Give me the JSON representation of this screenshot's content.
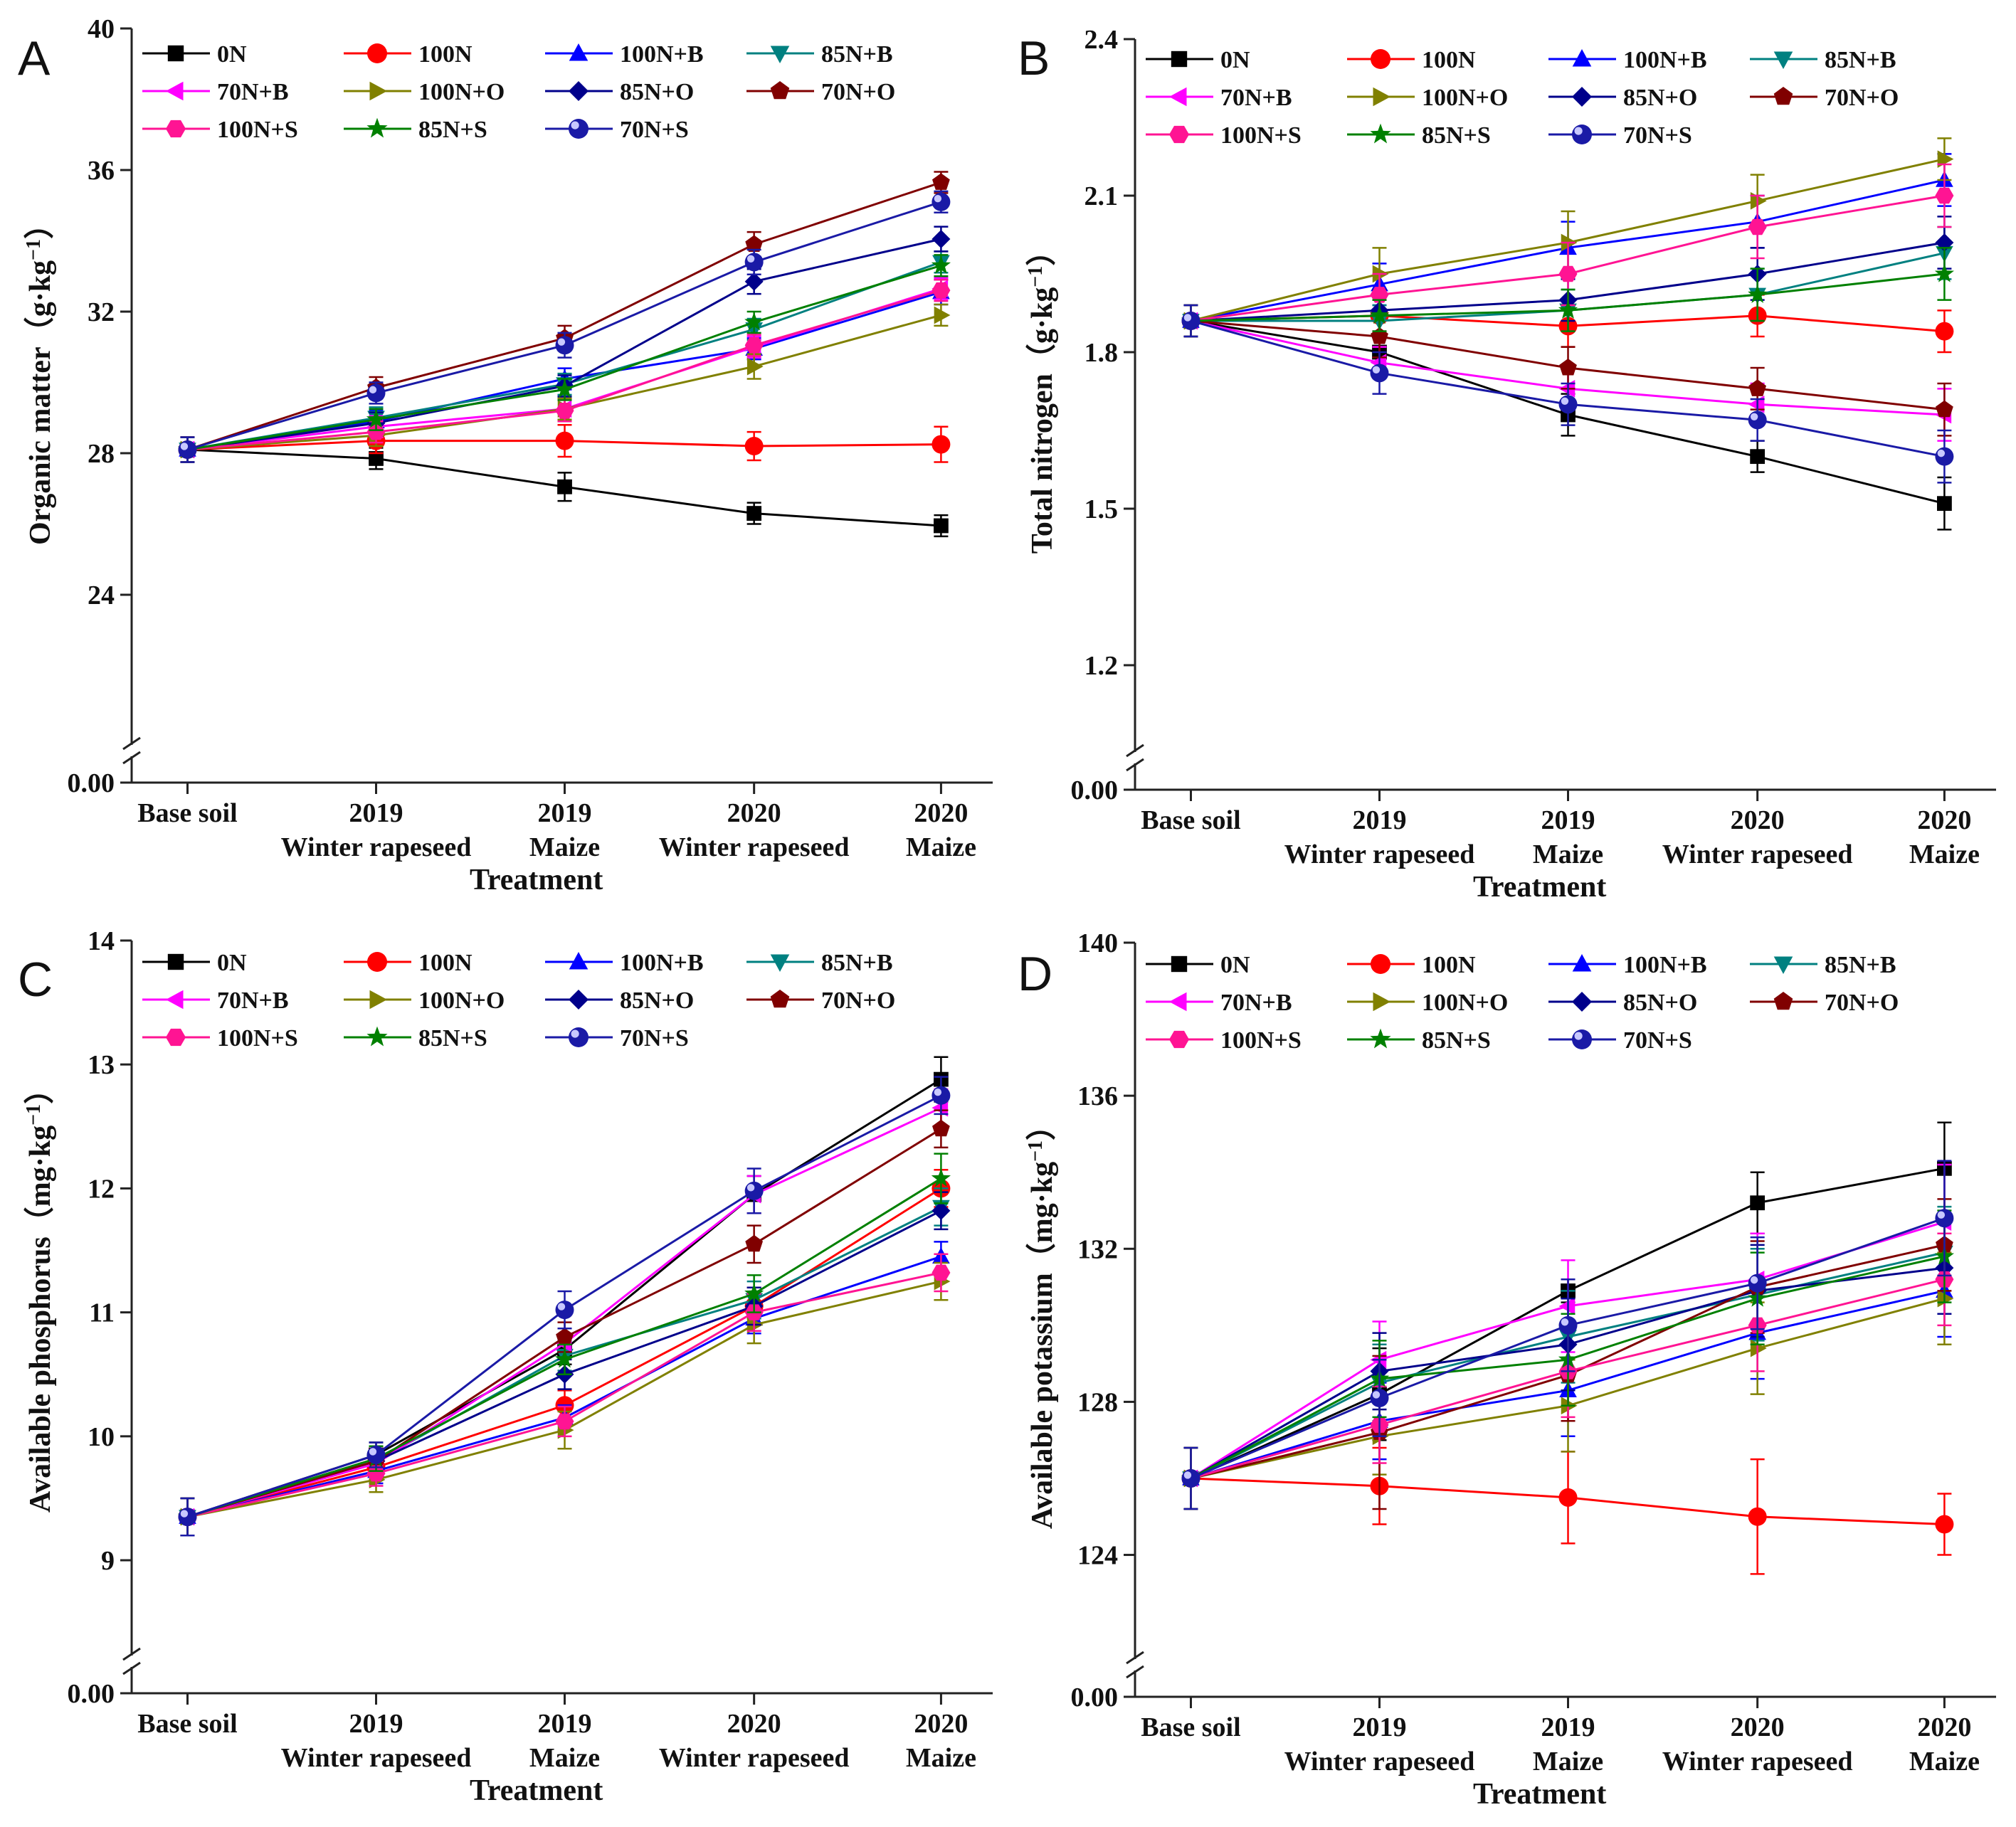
{
  "figure": {
    "x_title": "Treatment"
  },
  "series_styles": [
    {
      "name": "0N",
      "color": "#000000",
      "marker": "square"
    },
    {
      "name": "100N",
      "color": "#ff0000",
      "marker": "circle"
    },
    {
      "name": "100N+B",
      "color": "#0000ff",
      "marker": "triangle-up"
    },
    {
      "name": "85N+B",
      "color": "#008080",
      "marker": "triangle-down"
    },
    {
      "name": "70N+B",
      "color": "#ff00ff",
      "marker": "triangle-left"
    },
    {
      "name": "100N+O",
      "color": "#808000",
      "marker": "triangle-right"
    },
    {
      "name": "85N+O",
      "color": "#00008b",
      "marker": "diamond"
    },
    {
      "name": "70N+O",
      "color": "#800000",
      "marker": "pentagon"
    },
    {
      "name": "100N+S",
      "color": "#ff1493",
      "marker": "hexagon"
    },
    {
      "name": "85N+S",
      "color": "#008000",
      "marker": "star"
    },
    {
      "name": "70N+S",
      "color": "#1a1aa6",
      "marker": "sphere"
    }
  ],
  "chart_data": [
    {
      "panel": "A",
      "type": "line",
      "ylabel_main": "Organic matter",
      "ylabel_unit": "（g·kg",
      "ylabel_exp": "−1",
      "ylabel_close": "）",
      "categories": [
        {
          "line1": "Base soil",
          "line2": ""
        },
        {
          "line1": "2019",
          "line2": "Winter rapeseed"
        },
        {
          "line1": "2019",
          "line2": "Maize"
        },
        {
          "line1": "2020",
          "line2": "Winter rapeseed"
        },
        {
          "line1": "2020",
          "line2": "Maize"
        }
      ],
      "ylim": [
        20,
        40
      ],
      "yticks": [
        24,
        28,
        32,
        36,
        40
      ],
      "ytick_labels": [
        "24",
        "28",
        "32",
        "36",
        "40"
      ],
      "axis_break_label": "0.00",
      "series": [
        {
          "name": "0N",
          "values": [
            28.1,
            27.85,
            27.05,
            26.3,
            25.95
          ],
          "errors": [
            0.35,
            0.3,
            0.4,
            0.3,
            0.3
          ]
        },
        {
          "name": "100N",
          "values": [
            28.1,
            28.35,
            28.35,
            28.2,
            28.25
          ],
          "errors": [
            0.35,
            0.35,
            0.45,
            0.4,
            0.5
          ]
        },
        {
          "name": "100N+B",
          "values": [
            28.1,
            28.9,
            30.1,
            30.95,
            32.55
          ],
          "errors": [
            0.35,
            0.3,
            0.3,
            0.3,
            0.35
          ]
        },
        {
          "name": "85N+B",
          "values": [
            28.1,
            29.0,
            29.95,
            31.5,
            33.4
          ],
          "errors": [
            0.35,
            0.3,
            0.3,
            0.3,
            0.3
          ]
        },
        {
          "name": "70N+B",
          "values": [
            28.1,
            28.75,
            29.25,
            31.0,
            32.65
          ],
          "errors": [
            0.35,
            0.3,
            0.3,
            0.3,
            0.3
          ]
        },
        {
          "name": "100N+O",
          "values": [
            28.1,
            28.5,
            29.25,
            30.45,
            31.9
          ],
          "errors": [
            0.35,
            0.3,
            0.3,
            0.35,
            0.3
          ]
        },
        {
          "name": "85N+O",
          "values": [
            28.1,
            28.85,
            29.9,
            32.85,
            34.05
          ],
          "errors": [
            0.35,
            0.3,
            0.3,
            0.35,
            0.35
          ]
        },
        {
          "name": "70N+O",
          "values": [
            28.1,
            29.85,
            31.25,
            33.9,
            35.65
          ],
          "errors": [
            0.35,
            0.3,
            0.35,
            0.35,
            0.3
          ]
        },
        {
          "name": "100N+S",
          "values": [
            28.1,
            28.6,
            29.2,
            31.05,
            32.6
          ],
          "errors": [
            0.35,
            0.3,
            0.3,
            0.3,
            0.3
          ]
        },
        {
          "name": "85N+S",
          "values": [
            28.1,
            28.95,
            29.8,
            31.7,
            33.3
          ],
          "errors": [
            0.35,
            0.3,
            0.3,
            0.3,
            0.3
          ]
        },
        {
          "name": "70N+S",
          "values": [
            28.1,
            29.7,
            31.05,
            33.4,
            35.1
          ],
          "errors": [
            0.35,
            0.3,
            0.35,
            0.35,
            0.3
          ]
        }
      ]
    },
    {
      "panel": "B",
      "type": "line",
      "ylabel_main": "Total nitrogen",
      "ylabel_unit": "（g·kg",
      "ylabel_exp": "−1",
      "ylabel_close": "）",
      "categories": [
        {
          "line1": "Base soil",
          "line2": ""
        },
        {
          "line1": "2019",
          "line2": "Winter rapeseed"
        },
        {
          "line1": "2019",
          "line2": "Maize"
        },
        {
          "line1": "2020",
          "line2": "Winter rapeseed"
        },
        {
          "line1": "2020",
          "line2": "Maize"
        }
      ],
      "ylim": [
        1.05,
        2.4
      ],
      "yticks": [
        1.2,
        1.5,
        1.8,
        2.1,
        2.4
      ],
      "ytick_labels": [
        "1.2",
        "1.5",
        "1.8",
        "2.1",
        "2.4"
      ],
      "axis_break_label": "0.00",
      "series": [
        {
          "name": "0N",
          "values": [
            1.86,
            1.8,
            1.68,
            1.6,
            1.51
          ],
          "errors": [
            0.03,
            0.03,
            0.04,
            0.03,
            0.05
          ]
        },
        {
          "name": "100N",
          "values": [
            1.86,
            1.87,
            1.85,
            1.87,
            1.84
          ],
          "errors": [
            0.03,
            0.03,
            0.04,
            0.04,
            0.04
          ]
        },
        {
          "name": "100N+B",
          "values": [
            1.86,
            1.93,
            2.0,
            2.05,
            2.13
          ],
          "errors": [
            0.03,
            0.04,
            0.05,
            0.05,
            0.05
          ]
        },
        {
          "name": "85N+B",
          "values": [
            1.86,
            1.86,
            1.88,
            1.91,
            1.99
          ],
          "errors": [
            0.03,
            0.03,
            0.04,
            0.05,
            0.05
          ]
        },
        {
          "name": "70N+B",
          "values": [
            1.86,
            1.78,
            1.73,
            1.7,
            1.68
          ],
          "errors": [
            0.03,
            0.03,
            0.04,
            0.04,
            0.05
          ]
        },
        {
          "name": "100N+O",
          "values": [
            1.86,
            1.95,
            2.01,
            2.09,
            2.17
          ],
          "errors": [
            0.03,
            0.05,
            0.06,
            0.05,
            0.04
          ]
        },
        {
          "name": "85N+O",
          "values": [
            1.86,
            1.88,
            1.9,
            1.95,
            2.01
          ],
          "errors": [
            0.03,
            0.04,
            0.04,
            0.05,
            0.05
          ]
        },
        {
          "name": "70N+O",
          "values": [
            1.86,
            1.83,
            1.77,
            1.73,
            1.69
          ],
          "errors": [
            0.03,
            0.04,
            0.04,
            0.04,
            0.05
          ]
        },
        {
          "name": "100N+S",
          "values": [
            1.86,
            1.91,
            1.95,
            2.04,
            2.1
          ],
          "errors": [
            0.03,
            0.04,
            0.06,
            0.06,
            0.06
          ]
        },
        {
          "name": "85N+S",
          "values": [
            1.86,
            1.87,
            1.88,
            1.91,
            1.95
          ],
          "errors": [
            0.03,
            0.03,
            0.04,
            0.05,
            0.05
          ]
        },
        {
          "name": "70N+S",
          "values": [
            1.86,
            1.76,
            1.7,
            1.67,
            1.6
          ],
          "errors": [
            0.03,
            0.04,
            0.04,
            0.04,
            0.05
          ]
        }
      ]
    },
    {
      "panel": "C",
      "type": "line",
      "ylabel_main": "Available phosphorus",
      "ylabel_unit": "（mg·kg",
      "ylabel_exp": "−1",
      "ylabel_close": "）",
      "categories": [
        {
          "line1": "Base soil",
          "line2": ""
        },
        {
          "line1": "2019",
          "line2": "Winter rapeseed"
        },
        {
          "line1": "2019",
          "line2": "Maize"
        },
        {
          "line1": "2020",
          "line2": "Winter rapeseed"
        },
        {
          "line1": "2020",
          "line2": "Maize"
        }
      ],
      "ylim": [
        8.3,
        14
      ],
      "yticks": [
        9,
        10,
        11,
        12,
        13,
        14
      ],
      "ytick_labels": [
        "9",
        "10",
        "11",
        "12",
        "13",
        "14"
      ],
      "axis_break_label": "0.00",
      "series": [
        {
          "name": "0N",
          "values": [
            9.35,
            9.85,
            10.7,
            11.95,
            12.88
          ],
          "errors": [
            0.15,
            0.1,
            0.12,
            0.15,
            0.18
          ]
        },
        {
          "name": "100N",
          "values": [
            9.35,
            9.75,
            10.25,
            11.05,
            12.0
          ],
          "errors": [
            0.15,
            0.1,
            0.12,
            0.15,
            0.15
          ]
        },
        {
          "name": "100N+B",
          "values": [
            9.35,
            9.72,
            10.15,
            10.95,
            11.45
          ],
          "errors": [
            0.15,
            0.1,
            0.1,
            0.12,
            0.12
          ]
        },
        {
          "name": "85N+B",
          "values": [
            9.35,
            9.8,
            10.65,
            11.1,
            11.85
          ],
          "errors": [
            0.15,
            0.1,
            0.12,
            0.15,
            0.15
          ]
        },
        {
          "name": "70N+B",
          "values": [
            9.35,
            9.78,
            10.75,
            11.95,
            12.65
          ],
          "errors": [
            0.15,
            0.1,
            0.12,
            0.15,
            0.15
          ]
        },
        {
          "name": "100N+O",
          "values": [
            9.35,
            9.65,
            10.05,
            10.9,
            11.25
          ],
          "errors": [
            0.15,
            0.1,
            0.15,
            0.15,
            0.15
          ]
        },
        {
          "name": "85N+O",
          "values": [
            9.35,
            9.8,
            10.5,
            11.05,
            11.82
          ],
          "errors": [
            0.15,
            0.1,
            0.12,
            0.15,
            0.15
          ]
        },
        {
          "name": "70N+O",
          "values": [
            9.35,
            9.8,
            10.8,
            11.55,
            12.48
          ],
          "errors": [
            0.15,
            0.1,
            0.12,
            0.15,
            0.15
          ]
        },
        {
          "name": "100N+S",
          "values": [
            9.35,
            9.7,
            10.12,
            11.0,
            11.32
          ],
          "errors": [
            0.15,
            0.1,
            0.12,
            0.15,
            0.15
          ]
        },
        {
          "name": "85N+S",
          "values": [
            9.35,
            9.82,
            10.62,
            11.15,
            12.08
          ],
          "errors": [
            0.15,
            0.1,
            0.12,
            0.15,
            0.2
          ]
        },
        {
          "name": "70N+S",
          "values": [
            9.35,
            9.85,
            11.02,
            11.98,
            12.75
          ],
          "errors": [
            0.15,
            0.1,
            0.15,
            0.18,
            0.15
          ]
        }
      ]
    },
    {
      "panel": "D",
      "type": "line",
      "ylabel_main": "Available potassium",
      "ylabel_unit": "（mg·kg",
      "ylabel_exp": "−1",
      "ylabel_close": "）",
      "categories": [
        {
          "line1": "Base soil",
          "line2": ""
        },
        {
          "line1": "2019",
          "line2": "Winter rapeseed"
        },
        {
          "line1": "2019",
          "line2": "Maize"
        },
        {
          "line1": "2020",
          "line2": "Winter rapeseed"
        },
        {
          "line1": "2020",
          "line2": "Maize"
        }
      ],
      "ylim": [
        121.5,
        140
      ],
      "yticks": [
        124,
        128,
        132,
        136,
        140
      ],
      "ytick_labels": [
        "124",
        "128",
        "132",
        "136",
        "140"
      ],
      "axis_break_label": "0.00",
      "series": [
        {
          "name": "0N",
          "values": [
            126.0,
            128.2,
            130.9,
            133.2,
            134.1
          ],
          "errors": [
            0.8,
            1.2,
            0.3,
            0.8,
            1.2
          ]
        },
        {
          "name": "100N",
          "values": [
            126.0,
            125.8,
            125.5,
            125.0,
            124.8
          ],
          "errors": [
            0.8,
            1.0,
            1.2,
            1.5,
            0.8
          ]
        },
        {
          "name": "100N+B",
          "values": [
            126.0,
            127.5,
            128.3,
            129.8,
            130.9
          ],
          "errors": [
            0.8,
            1.0,
            1.2,
            1.2,
            1.2
          ]
        },
        {
          "name": "85N+B",
          "values": [
            126.0,
            128.5,
            129.7,
            130.8,
            131.9
          ],
          "errors": [
            0.8,
            1.0,
            1.2,
            1.2,
            1.2
          ]
        },
        {
          "name": "70N+B",
          "values": [
            126.0,
            129.1,
            130.5,
            131.2,
            132.7
          ],
          "errors": [
            0.8,
            1.0,
            1.2,
            1.2,
            1.5
          ]
        },
        {
          "name": "100N+O",
          "values": [
            126.0,
            127.1,
            127.9,
            129.4,
            130.7
          ],
          "errors": [
            0.8,
            1.0,
            1.2,
            1.2,
            1.2
          ]
        },
        {
          "name": "85N+O",
          "values": [
            126.0,
            128.8,
            129.5,
            130.9,
            131.5
          ],
          "errors": [
            0.8,
            1.0,
            1.2,
            1.2,
            1.2
          ]
        },
        {
          "name": "70N+O",
          "values": [
            126.0,
            127.2,
            128.7,
            131.0,
            132.1
          ],
          "errors": [
            0.8,
            2.0,
            1.2,
            1.2,
            1.2
          ]
        },
        {
          "name": "100N+S",
          "values": [
            126.0,
            127.4,
            128.8,
            130.0,
            131.2
          ],
          "errors": [
            0.8,
            1.0,
            1.2,
            1.2,
            1.2
          ]
        },
        {
          "name": "85N+S",
          "values": [
            126.0,
            128.6,
            129.1,
            130.7,
            131.8
          ],
          "errors": [
            0.8,
            1.0,
            1.2,
            1.2,
            1.2
          ]
        },
        {
          "name": "70N+S",
          "values": [
            126.0,
            128.1,
            130.0,
            131.1,
            132.8
          ],
          "errors": [
            0.8,
            1.0,
            1.2,
            1.2,
            1.5
          ]
        }
      ]
    }
  ]
}
